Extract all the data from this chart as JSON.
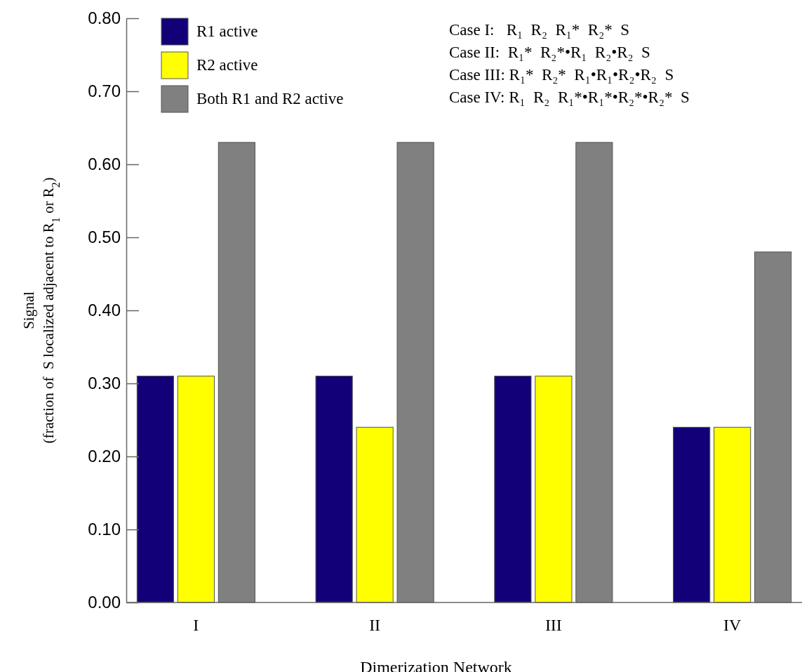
{
  "chart_data": {
    "type": "bar",
    "xlabel": "Dimerization Network",
    "ylabel": "Signal\n(fraction of  S localized adjacent to R$_{1}$ or R$_{2}$)",
    "categories": [
      "I",
      "II",
      "III",
      "IV"
    ],
    "series": [
      {
        "name": "R1 active",
        "color": "#120078",
        "values": [
          0.31,
          0.31,
          0.31,
          0.24
        ]
      },
      {
        "name": "R2 active",
        "color": "#ffff00",
        "values": [
          0.31,
          0.24,
          0.31,
          0.24
        ]
      },
      {
        "name": "Both R1 and R2 active",
        "color": "#808080",
        "values": [
          0.63,
          0.63,
          0.63,
          0.48
        ]
      }
    ],
    "ylim": [
      0,
      0.8
    ],
    "yticks": [
      {
        "value": 0,
        "label": "0.00"
      },
      {
        "value": 0.1,
        "label": "0.10"
      },
      {
        "value": 0.2,
        "label": "0.20"
      },
      {
        "value": 0.3,
        "label": "0.30"
      },
      {
        "value": 0.4,
        "label": "0.40"
      },
      {
        "value": 0.5,
        "label": "0.50"
      },
      {
        "value": 0.6,
        "label": "0.60"
      },
      {
        "value": 0.7,
        "label": "0.70"
      },
      {
        "value": 0.8,
        "label": "0.80"
      }
    ],
    "legend": "top left",
    "grid": false,
    "annotations": [
      "Case I:   R₁  R₂  R₁*  R₂*  S",
      "Case II:  R₁*  R₂*•R₁  R₂•R₂  S",
      "Case III: R₁*  R₂*  R₁•R₁•R₂•R₂  S",
      "Case IV: R₁  R₂  R₁*•R₁*•R₂*•R₂*  S"
    ]
  }
}
